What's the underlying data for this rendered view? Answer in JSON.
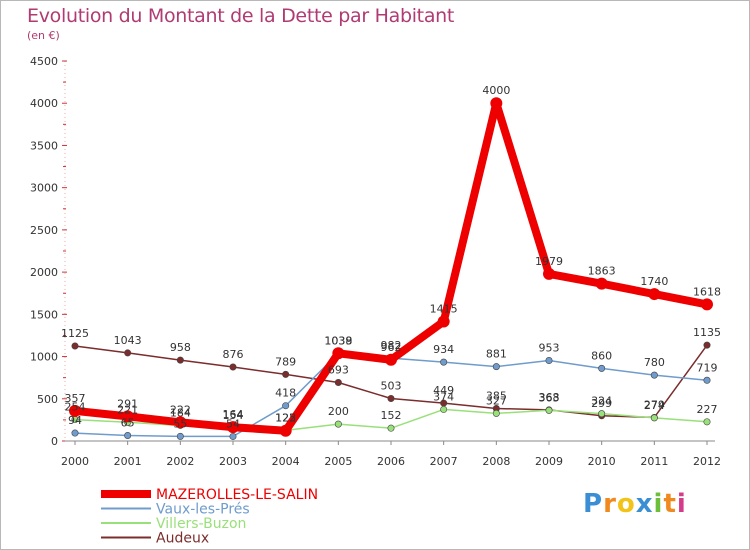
{
  "title": "Evolution du Montant de la Dette par Habitant",
  "subtitle": "(en €)",
  "brand": "Proxiti",
  "brand_colors": [
    "#3a8fd4",
    "#f08a1e",
    "#f2c418",
    "#3a8fd4",
    "#6cbf3a",
    "#f08a1e",
    "#d63a8a"
  ],
  "chart_data": {
    "type": "line",
    "x": [
      "2000",
      "2001",
      "2002",
      "2003",
      "2004",
      "2005",
      "2006",
      "2007",
      "2008",
      "2009",
      "2010",
      "2011",
      "2012"
    ],
    "ylim": [
      0,
      4500
    ],
    "yticks": [
      0,
      500,
      1000,
      1500,
      2000,
      2500,
      3000,
      3500,
      4000,
      4500
    ],
    "grid": false,
    "legend_position": "bottom-left",
    "series": [
      {
        "name": "Audeux",
        "color": "#7b2c2c",
        "values": [
          1125,
          1043,
          958,
          876,
          789,
          693,
          503,
          449,
          385,
          368,
          299,
          279,
          1135
        ]
      },
      {
        "name": "Villers-Buzon",
        "color": "#99e07a",
        "values": [
          254,
          221,
          184,
          154,
          125,
          200,
          152,
          374,
          327,
          363,
          324,
          274,
          227
        ]
      },
      {
        "name": "Vaux-les-Prés",
        "color": "#6f9ccc",
        "values": [
          94,
          65,
          55,
          54,
          418,
          1038,
          982,
          934,
          881,
          953,
          860,
          780,
          719
        ]
      },
      {
        "name": "MAZEROLLES-LE-SALIN",
        "color": "#ee0000",
        "values": [
          357,
          291,
          222,
          164,
          122,
          1039,
          962,
          1415,
          4000,
          1979,
          1863,
          1740,
          1618
        ]
      }
    ]
  }
}
